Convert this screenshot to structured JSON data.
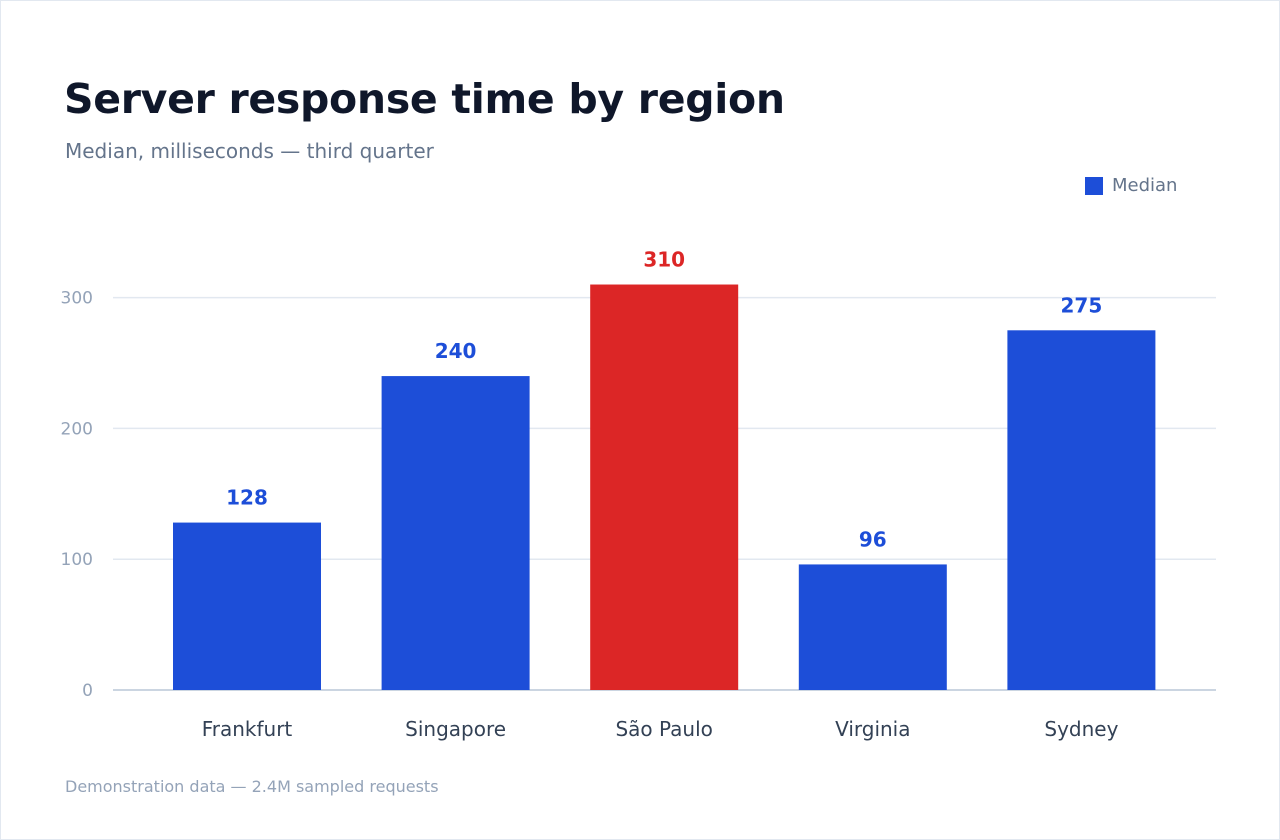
{
  "header": {
    "title": "Server response time by region",
    "subtitle": "Median, milliseconds — third quarter"
  },
  "legend": {
    "label": "Median"
  },
  "footnote": "Demonstration data — 2.4M sampled requests",
  "colors": {
    "bar": "#1d4ed8",
    "highlight": "#dc2626",
    "gridline": "#e2e8f0",
    "axis": "#cbd5e1",
    "tick_text": "#94a3b8",
    "category_text": "#334155"
  },
  "chart_data": {
    "type": "bar",
    "title": "Server response time by region",
    "subtitle": "Median, milliseconds — third quarter",
    "categories": [
      "Frankfurt",
      "Singapore",
      "São Paulo",
      "Virginia",
      "Sydney"
    ],
    "series": [
      {
        "name": "Median",
        "values": [
          128,
          240,
          310,
          96,
          275
        ]
      }
    ],
    "highlight_index": 2,
    "y_ticks": [
      0,
      100,
      200,
      300
    ],
    "ylim": [
      0,
      340
    ],
    "grid": true,
    "legend_position": "top-right",
    "data_labels": true
  }
}
